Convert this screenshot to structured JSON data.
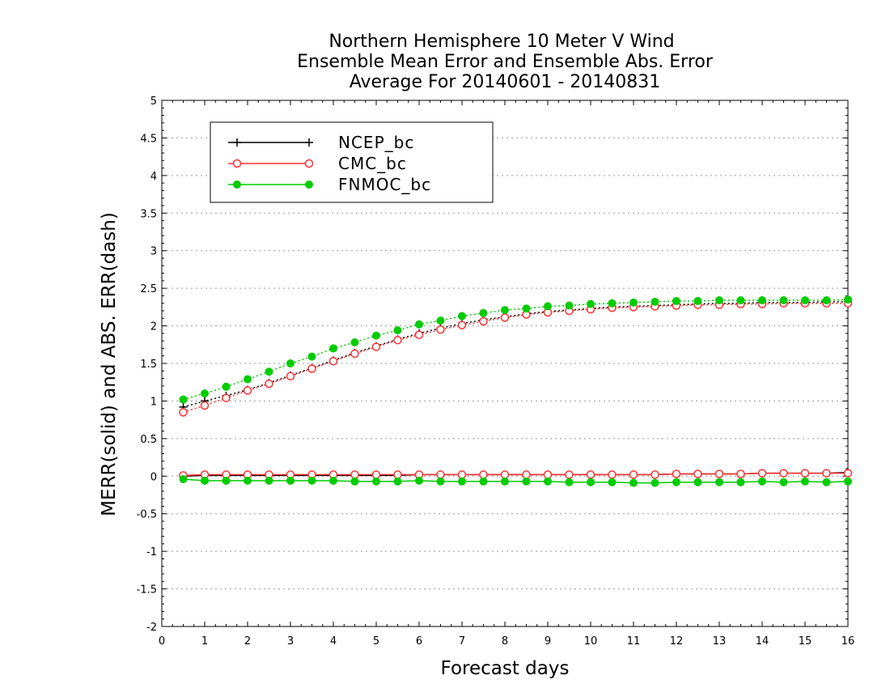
{
  "chart_data": {
    "type": "line",
    "title_lines": [
      "Northern Hemisphere 10 Meter V Wind",
      "Ensemble Mean Error and Ensemble Abs. Error",
      "Average For 20140601 - 20140831"
    ],
    "xlabel": "Forecast days",
    "ylabel": "MERR(solid) and ABS. ERR(dash)",
    "xlim": [
      0,
      16
    ],
    "ylim": [
      -2,
      5
    ],
    "x_ticks": [
      0,
      1,
      2,
      3,
      4,
      5,
      6,
      7,
      8,
      9,
      10,
      11,
      12,
      13,
      14,
      15,
      16
    ],
    "y_ticks": [
      -2,
      -1.5,
      -1,
      -0.5,
      0,
      0.5,
      1,
      1.5,
      2,
      2.5,
      3,
      3.5,
      4,
      4.5,
      5
    ],
    "grid": "horizontal-dotted",
    "legend_position": "top-left",
    "x": [
      0.5,
      1,
      1.5,
      2,
      2.5,
      3,
      3.5,
      4,
      4.5,
      5,
      5.5,
      6,
      6.5,
      7,
      7.5,
      8,
      8.5,
      9,
      9.5,
      10,
      10.5,
      11,
      11.5,
      12,
      12.5,
      13,
      13.5,
      14,
      14.5,
      15,
      15.5,
      16
    ],
    "series": [
      {
        "name": "NCEP_bc",
        "color": "#000000",
        "marker": "plus",
        "merr": [
          0.0,
          0.01,
          0.01,
          0.01,
          0.01,
          0.01,
          0.01,
          0.01,
          0.01,
          0.01,
          0.01,
          0.02,
          0.02,
          0.02,
          0.02,
          0.02,
          0.02,
          0.02,
          0.02,
          0.02,
          0.02,
          0.02,
          0.02,
          0.03,
          0.03,
          0.03,
          0.03,
          0.04,
          0.04,
          0.04,
          0.04,
          0.05
        ],
        "abs_err": [
          0.92,
          1.0,
          1.07,
          1.15,
          1.24,
          1.34,
          1.44,
          1.54,
          1.64,
          1.73,
          1.82,
          1.9,
          1.97,
          2.03,
          2.08,
          2.12,
          2.16,
          2.19,
          2.21,
          2.23,
          2.25,
          2.26,
          2.27,
          2.28,
          2.29,
          2.3,
          2.3,
          2.31,
          2.31,
          2.31,
          2.32,
          2.32
        ]
      },
      {
        "name": "CMC_bc",
        "color": "#ff3030",
        "marker": "open-circle",
        "merr": [
          0.01,
          0.02,
          0.02,
          0.02,
          0.02,
          0.02,
          0.02,
          0.02,
          0.02,
          0.02,
          0.02,
          0.02,
          0.02,
          0.02,
          0.02,
          0.02,
          0.02,
          0.02,
          0.02,
          0.02,
          0.02,
          0.02,
          0.02,
          0.03,
          0.03,
          0.03,
          0.03,
          0.04,
          0.04,
          0.04,
          0.04,
          0.04
        ],
        "abs_err": [
          0.85,
          0.94,
          1.04,
          1.14,
          1.23,
          1.33,
          1.43,
          1.53,
          1.63,
          1.72,
          1.81,
          1.88,
          1.95,
          2.01,
          2.06,
          2.11,
          2.15,
          2.18,
          2.2,
          2.22,
          2.24,
          2.25,
          2.26,
          2.27,
          2.28,
          2.28,
          2.29,
          2.29,
          2.3,
          2.3,
          2.3,
          2.3
        ]
      },
      {
        "name": "FNMOC_bc",
        "color": "#00cc00",
        "marker": "filled-circle",
        "merr": [
          -0.04,
          -0.06,
          -0.06,
          -0.06,
          -0.06,
          -0.06,
          -0.06,
          -0.06,
          -0.07,
          -0.07,
          -0.07,
          -0.06,
          -0.07,
          -0.07,
          -0.07,
          -0.07,
          -0.07,
          -0.07,
          -0.08,
          -0.08,
          -0.08,
          -0.09,
          -0.09,
          -0.08,
          -0.08,
          -0.08,
          -0.08,
          -0.07,
          -0.08,
          -0.07,
          -0.08,
          -0.07
        ],
        "abs_err": [
          1.02,
          1.1,
          1.19,
          1.29,
          1.39,
          1.5,
          1.59,
          1.7,
          1.78,
          1.87,
          1.94,
          2.02,
          2.07,
          2.13,
          2.17,
          2.21,
          2.23,
          2.26,
          2.27,
          2.29,
          2.3,
          2.31,
          2.32,
          2.33,
          2.33,
          2.34,
          2.34,
          2.34,
          2.34,
          2.34,
          2.34,
          2.35
        ]
      }
    ]
  }
}
